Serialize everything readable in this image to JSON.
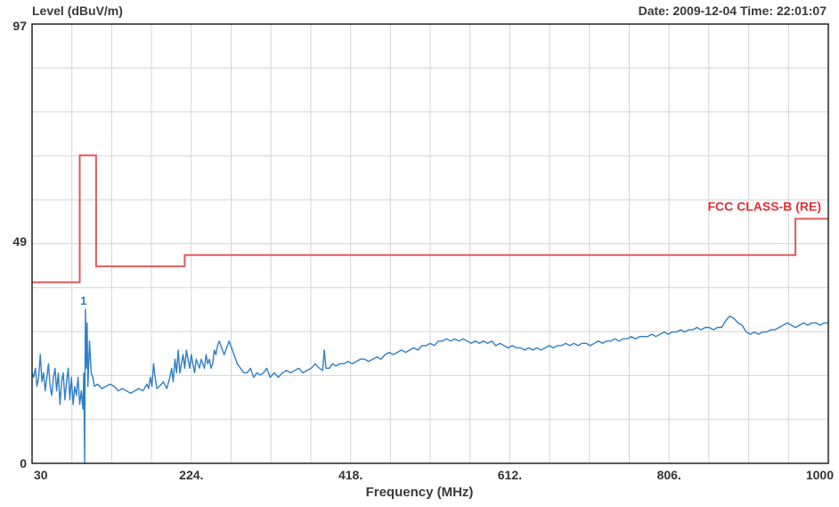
{
  "header": {
    "ylabel": "Level (dBuV/m)",
    "datetime": "Date: 2009-12-04  Time: 22:01:07"
  },
  "colors": {
    "limit": "#e05a5a",
    "trace": "#2f7fc8",
    "grid": "#d4d4d4",
    "frame": "#222222",
    "limit_label": "#e0303a"
  },
  "chart_data": {
    "type": "line",
    "xlabel": "Frequency (MHz)",
    "ylabel": "Level (dBuV/m)",
    "xlim": [
      30,
      1000
    ],
    "ylim": [
      0,
      97
    ],
    "x_ticks": [
      {
        "value": 30,
        "label": "30"
      },
      {
        "value": 224,
        "label": "224."
      },
      {
        "value": 418,
        "label": "418."
      },
      {
        "value": 612,
        "label": "612."
      },
      {
        "value": 806,
        "label": "806."
      },
      {
        "value": 1000,
        "label": "1000"
      }
    ],
    "y_ticks": [
      {
        "value": 0,
        "label": "0"
      },
      {
        "value": 49,
        "label": "49"
      },
      {
        "value": 97,
        "label": "97"
      }
    ],
    "grid": {
      "vertical_count": 20,
      "horizontal_count": 10
    },
    "limit_line": {
      "label": "FCC CLASS-B (RE)",
      "points": [
        [
          30,
          40
        ],
        [
          88,
          40
        ],
        [
          88,
          68
        ],
        [
          108,
          68
        ],
        [
          108,
          43.5
        ],
        [
          216,
          43.5
        ],
        [
          216,
          46
        ],
        [
          960,
          46
        ],
        [
          960,
          54
        ],
        [
          1000,
          54
        ]
      ]
    },
    "marker": {
      "label": "1",
      "x": 95,
      "y": 34
    },
    "series": [
      {
        "points": [
          [
            30,
            20
          ],
          [
            32,
            19
          ],
          [
            34,
            21
          ],
          [
            36,
            17
          ],
          [
            38,
            19
          ],
          [
            40,
            24
          ],
          [
            42,
            18
          ],
          [
            44,
            20
          ],
          [
            46,
            16
          ],
          [
            48,
            19
          ],
          [
            50,
            22
          ],
          [
            52,
            17
          ],
          [
            54,
            15
          ],
          [
            56,
            19
          ],
          [
            58,
            21
          ],
          [
            60,
            16
          ],
          [
            62,
            20
          ],
          [
            64,
            13
          ],
          [
            66,
            18
          ],
          [
            68,
            20
          ],
          [
            70,
            14
          ],
          [
            72,
            18
          ],
          [
            74,
            21
          ],
          [
            76,
            14
          ],
          [
            78,
            19
          ],
          [
            80,
            13
          ],
          [
            82,
            17
          ],
          [
            84,
            15
          ],
          [
            86,
            19
          ],
          [
            88,
            13
          ],
          [
            90,
            16
          ],
          [
            92,
            12
          ],
          [
            93,
            20
          ],
          [
            94,
            0
          ],
          [
            95,
            34
          ],
          [
            96,
            21
          ],
          [
            97,
            31
          ],
          [
            98,
            17
          ],
          [
            100,
            27
          ],
          [
            102,
            20
          ],
          [
            104,
            19
          ],
          [
            106,
            17
          ],
          [
            110,
            17.5
          ],
          [
            115,
            16.5
          ],
          [
            120,
            17
          ],
          [
            125,
            17.5
          ],
          [
            130,
            17
          ],
          [
            135,
            16
          ],
          [
            140,
            16.5
          ],
          [
            145,
            16
          ],
          [
            150,
            15.5
          ],
          [
            155,
            16
          ],
          [
            160,
            16.5
          ],
          [
            165,
            16
          ],
          [
            170,
            17.5
          ],
          [
            172,
            16.5
          ],
          [
            174,
            19
          ],
          [
            176,
            17
          ],
          [
            178,
            22
          ],
          [
            180,
            19
          ],
          [
            182,
            16.5
          ],
          [
            185,
            17
          ],
          [
            190,
            18
          ],
          [
            194,
            16.5
          ],
          [
            198,
            19
          ],
          [
            200,
            21
          ],
          [
            202,
            18
          ],
          [
            204,
            23
          ],
          [
            206,
            20
          ],
          [
            208,
            25
          ],
          [
            210,
            20
          ],
          [
            212,
            22
          ],
          [
            214,
            24
          ],
          [
            216,
            21
          ],
          [
            218,
            25
          ],
          [
            220,
            23
          ],
          [
            222,
            21
          ],
          [
            224,
            24
          ],
          [
            226,
            22
          ],
          [
            228,
            20
          ],
          [
            230,
            23
          ],
          [
            232,
            22
          ],
          [
            234,
            21
          ],
          [
            236,
            23
          ],
          [
            238,
            22
          ],
          [
            240,
            21
          ],
          [
            242,
            24
          ],
          [
            244,
            22
          ],
          [
            246,
            23
          ],
          [
            248,
            21
          ],
          [
            250,
            22
          ],
          [
            252,
            25
          ],
          [
            254,
            24
          ],
          [
            256,
            26
          ],
          [
            258,
            27
          ],
          [
            260,
            26
          ],
          [
            262,
            25
          ],
          [
            264,
            24
          ],
          [
            266,
            25
          ],
          [
            268,
            26
          ],
          [
            270,
            27
          ],
          [
            272,
            26
          ],
          [
            274,
            25
          ],
          [
            276,
            24
          ],
          [
            278,
            23
          ],
          [
            280,
            22
          ],
          [
            284,
            21
          ],
          [
            288,
            20
          ],
          [
            292,
            20
          ],
          [
            296,
            21
          ],
          [
            300,
            19
          ],
          [
            304,
            20
          ],
          [
            308,
            19.5
          ],
          [
            312,
            20
          ],
          [
            316,
            21
          ],
          [
            320,
            19
          ],
          [
            325,
            20
          ],
          [
            330,
            19
          ],
          [
            335,
            20
          ],
          [
            340,
            20.5
          ],
          [
            345,
            20
          ],
          [
            350,
            20.5
          ],
          [
            355,
            21
          ],
          [
            360,
            20
          ],
          [
            365,
            20.5
          ],
          [
            370,
            21
          ],
          [
            375,
            22
          ],
          [
            380,
            21
          ],
          [
            384,
            20.5
          ],
          [
            386,
            25
          ],
          [
            388,
            21
          ],
          [
            392,
            21
          ],
          [
            396,
            22
          ],
          [
            400,
            21.5
          ],
          [
            405,
            22
          ],
          [
            410,
            22
          ],
          [
            415,
            22.5
          ],
          [
            420,
            22
          ],
          [
            425,
            22.5
          ],
          [
            430,
            23
          ],
          [
            435,
            23
          ],
          [
            440,
            22.5
          ],
          [
            445,
            23
          ],
          [
            450,
            23.5
          ],
          [
            455,
            23
          ],
          [
            460,
            24
          ],
          [
            465,
            24.5
          ],
          [
            470,
            24
          ],
          [
            475,
            24.5
          ],
          [
            480,
            25
          ],
          [
            485,
            24.5
          ],
          [
            490,
            25
          ],
          [
            495,
            25.5
          ],
          [
            500,
            25
          ],
          [
            505,
            26
          ],
          [
            510,
            26
          ],
          [
            515,
            26.5
          ],
          [
            520,
            26
          ],
          [
            525,
            27
          ],
          [
            530,
            27
          ],
          [
            535,
            27.5
          ],
          [
            540,
            27
          ],
          [
            545,
            27.5
          ],
          [
            550,
            27
          ],
          [
            555,
            27.5
          ],
          [
            560,
            27
          ],
          [
            565,
            26.5
          ],
          [
            570,
            27
          ],
          [
            575,
            26.5
          ],
          [
            580,
            27
          ],
          [
            585,
            26.5
          ],
          [
            590,
            27
          ],
          [
            595,
            26
          ],
          [
            600,
            26.5
          ],
          [
            605,
            26
          ],
          [
            610,
            25.5
          ],
          [
            615,
            26
          ],
          [
            620,
            25.5
          ],
          [
            625,
            25.5
          ],
          [
            630,
            25
          ],
          [
            635,
            25.5
          ],
          [
            640,
            25
          ],
          [
            645,
            25.5
          ],
          [
            650,
            25
          ],
          [
            655,
            25.5
          ],
          [
            660,
            26
          ],
          [
            665,
            25.5
          ],
          [
            670,
            26
          ],
          [
            675,
            26
          ],
          [
            680,
            26.5
          ],
          [
            685,
            26
          ],
          [
            690,
            26.5
          ],
          [
            695,
            26
          ],
          [
            700,
            26.5
          ],
          [
            705,
            26.5
          ],
          [
            710,
            26
          ],
          [
            715,
            26.5
          ],
          [
            720,
            27
          ],
          [
            725,
            26.5
          ],
          [
            730,
            27
          ],
          [
            735,
            27
          ],
          [
            740,
            27.5
          ],
          [
            745,
            27
          ],
          [
            750,
            27.5
          ],
          [
            755,
            27.5
          ],
          [
            760,
            28
          ],
          [
            765,
            27.5
          ],
          [
            770,
            28
          ],
          [
            775,
            28
          ],
          [
            780,
            28
          ],
          [
            785,
            28.5
          ],
          [
            790,
            28
          ],
          [
            795,
            28.5
          ],
          [
            800,
            29
          ],
          [
            805,
            28.5
          ],
          [
            810,
            29
          ],
          [
            815,
            29
          ],
          [
            820,
            29.5
          ],
          [
            825,
            29
          ],
          [
            830,
            29.5
          ],
          [
            835,
            29.5
          ],
          [
            840,
            30
          ],
          [
            845,
            29.5
          ],
          [
            850,
            30
          ],
          [
            855,
            30
          ],
          [
            860,
            29.5
          ],
          [
            865,
            30
          ],
          [
            870,
            30
          ],
          [
            875,
            31.5
          ],
          [
            880,
            32.5
          ],
          [
            885,
            32
          ],
          [
            890,
            31
          ],
          [
            895,
            30.5
          ],
          [
            900,
            29
          ],
          [
            905,
            28.5
          ],
          [
            910,
            29
          ],
          [
            915,
            28.5
          ],
          [
            920,
            29
          ],
          [
            925,
            29
          ],
          [
            930,
            29.5
          ],
          [
            935,
            29.5
          ],
          [
            940,
            30
          ],
          [
            945,
            30.5
          ],
          [
            950,
            31
          ],
          [
            955,
            30.5
          ],
          [
            960,
            30
          ],
          [
            965,
            30.5
          ],
          [
            970,
            31
          ],
          [
            975,
            30.5
          ],
          [
            980,
            31
          ],
          [
            985,
            31
          ],
          [
            990,
            30.5
          ],
          [
            995,
            31
          ],
          [
            1000,
            31
          ]
        ]
      }
    ]
  }
}
